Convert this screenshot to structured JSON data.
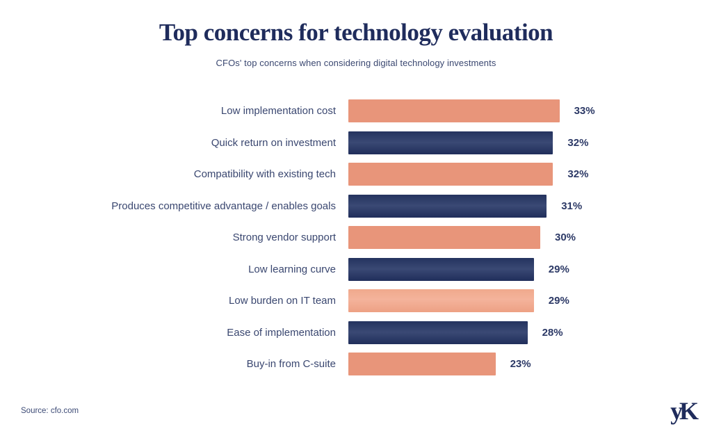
{
  "header": {
    "title": "Top concerns for technology evaluation",
    "subtitle": "CFOs' top concerns when considering digital technology investments"
  },
  "chart_data": {
    "type": "bar",
    "orientation": "horizontal",
    "title": "Top concerns for technology evaluation",
    "subtitle": "CFOs' top concerns when considering digital technology investments",
    "categories": [
      "Low implementation cost",
      "Quick return on investment",
      "Compatibility with existing tech",
      "Produces competitive advantage / enables goals",
      "Strong vendor support",
      "Low learning curve",
      "Low burden on IT team",
      "Ease of implementation",
      "Buy-in from C-suite"
    ],
    "values": [
      33,
      32,
      32,
      31,
      30,
      29,
      29,
      28,
      23
    ],
    "value_labels": [
      "33%",
      "32%",
      "32%",
      "31%",
      "30%",
      "29%",
      "29%",
      "28%",
      "23%"
    ],
    "value_suffix": "%",
    "bar_colors": [
      "orange",
      "navy",
      "orange",
      "navy",
      "orange",
      "navy",
      "light_orange",
      "navy",
      "orange"
    ],
    "palette": {
      "orange": "#E8957A",
      "light_orange": "#F2AA8E",
      "navy": "#2A3966",
      "text_navy": "#2C3966",
      "title_navy": "#1F2C5C"
    },
    "xlim": [
      0,
      35
    ],
    "grid": false,
    "legend": false,
    "value_label_position": "right"
  },
  "footer": {
    "source": "Source: cfo.com",
    "logo_text": "yK"
  }
}
